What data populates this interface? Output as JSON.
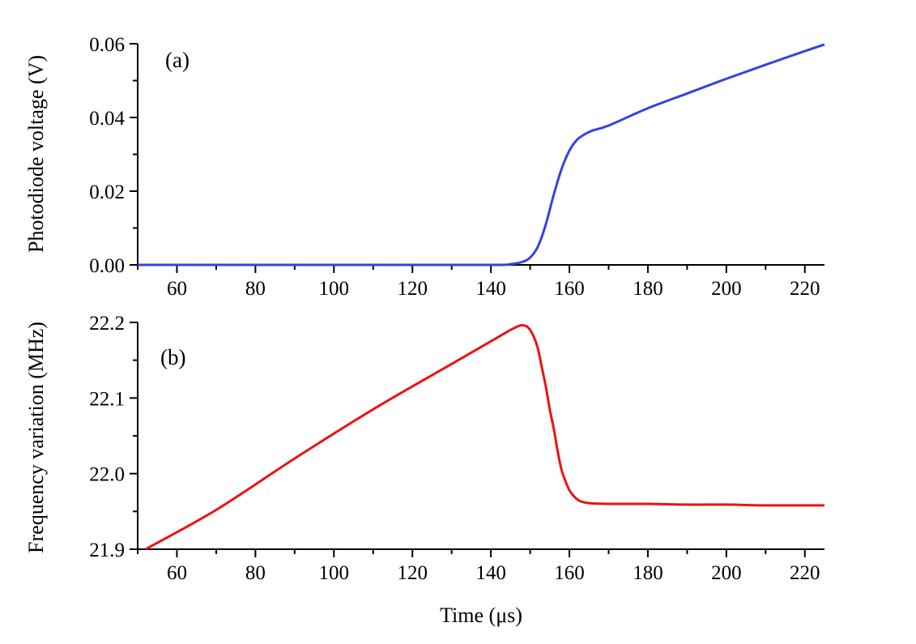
{
  "chart_data": [
    {
      "type": "line",
      "panel_label": "(a)",
      "xlabel": "",
      "ylabel": "Photodiode voltage (V)",
      "xlim": [
        50,
        225
      ],
      "ylim": [
        0,
        0.06
      ],
      "xticks": [
        60,
        80,
        100,
        120,
        140,
        160,
        180,
        200,
        220
      ],
      "xtick_labels": [
        "60",
        "80",
        "100",
        "120",
        "140",
        "160",
        "180",
        "200",
        "220"
      ],
      "yticks": [
        0,
        0.02,
        0.04,
        0.06
      ],
      "ytick_labels": [
        "0.00",
        "0.02",
        "0.04",
        "0.06"
      ],
      "series": [
        {
          "name": "Photodiode voltage",
          "color": "#3344e0",
          "x": [
            50,
            80,
            110,
            140,
            145,
            148,
            150,
            152,
            154,
            156,
            158,
            160,
            162,
            164,
            166,
            170,
            180,
            190,
            200,
            210,
            220,
            225
          ],
          "y": [
            0.0,
            0.0,
            0.0,
            0.0,
            0.0002,
            0.0008,
            0.002,
            0.005,
            0.011,
            0.019,
            0.026,
            0.031,
            0.034,
            0.0355,
            0.0365,
            0.0378,
            0.0425,
            0.0465,
            0.0505,
            0.0543,
            0.058,
            0.0598
          ]
        }
      ]
    },
    {
      "type": "line",
      "panel_label": "(b)",
      "xlabel": "Time (μs)",
      "ylabel": "Frequency variation (MHz)",
      "xlim": [
        50,
        225
      ],
      "ylim": [
        21.9,
        22.2
      ],
      "xticks": [
        60,
        80,
        100,
        120,
        140,
        160,
        180,
        200,
        220
      ],
      "xtick_labels": [
        "60",
        "80",
        "100",
        "120",
        "140",
        "160",
        "180",
        "200",
        "220"
      ],
      "yticks": [
        21.9,
        22.0,
        22.1,
        22.2
      ],
      "ytick_labels": [
        "21.9",
        "22.0",
        "22.1",
        "22.2"
      ],
      "series": [
        {
          "name": "Frequency variation",
          "color": "#ee1111",
          "x": [
            52,
            70,
            90,
            110,
            130,
            140,
            145,
            147.5,
            149,
            150,
            151,
            152,
            153,
            154,
            155,
            156,
            157,
            158,
            159,
            160,
            161,
            162,
            163,
            165,
            170,
            180,
            190,
            200,
            210,
            225
          ],
          "y": [
            21.9,
            21.952,
            22.02,
            22.085,
            22.145,
            22.175,
            22.19,
            22.196,
            22.195,
            22.19,
            22.18,
            22.165,
            22.14,
            22.115,
            22.085,
            22.06,
            22.03,
            22.005,
            21.99,
            21.978,
            21.971,
            21.966,
            21.963,
            21.961,
            21.96,
            21.96,
            21.959,
            21.959,
            21.958,
            21.958
          ]
        }
      ]
    }
  ]
}
